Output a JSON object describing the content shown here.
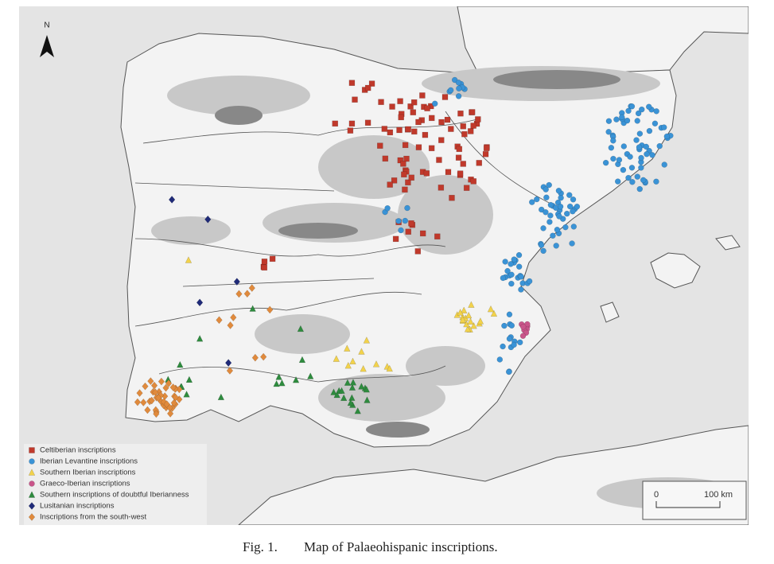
{
  "map": {
    "north_label": "N",
    "legend": [
      {
        "label": "Celtiberian inscriptions",
        "color": "#c0392b",
        "shape": "square"
      },
      {
        "label": "Iberian Levantine inscriptions",
        "color": "#3a93d6",
        "shape": "circle"
      },
      {
        "label": "Southern Iberian inscriptions",
        "color": "#f2d24b",
        "shape": "triangle"
      },
      {
        "label": "Graeco-Iberian inscriptions",
        "color": "#c9558a",
        "shape": "circle"
      },
      {
        "label": "Southern inscriptions of doubtful Iberianness",
        "color": "#2e8b3e",
        "shape": "triangle"
      },
      {
        "label": "Lusitanian inscriptions",
        "color": "#1f2a78",
        "shape": "diamond"
      },
      {
        "label": "Inscriptions from the south-west",
        "color": "#e08a3c",
        "shape": "diamond"
      }
    ],
    "scale_bar": {
      "start": "0",
      "end": "100 km"
    }
  },
  "caption": {
    "figure": "Fig. 1.",
    "text": "Map of Palaeohispanic inscriptions."
  }
}
